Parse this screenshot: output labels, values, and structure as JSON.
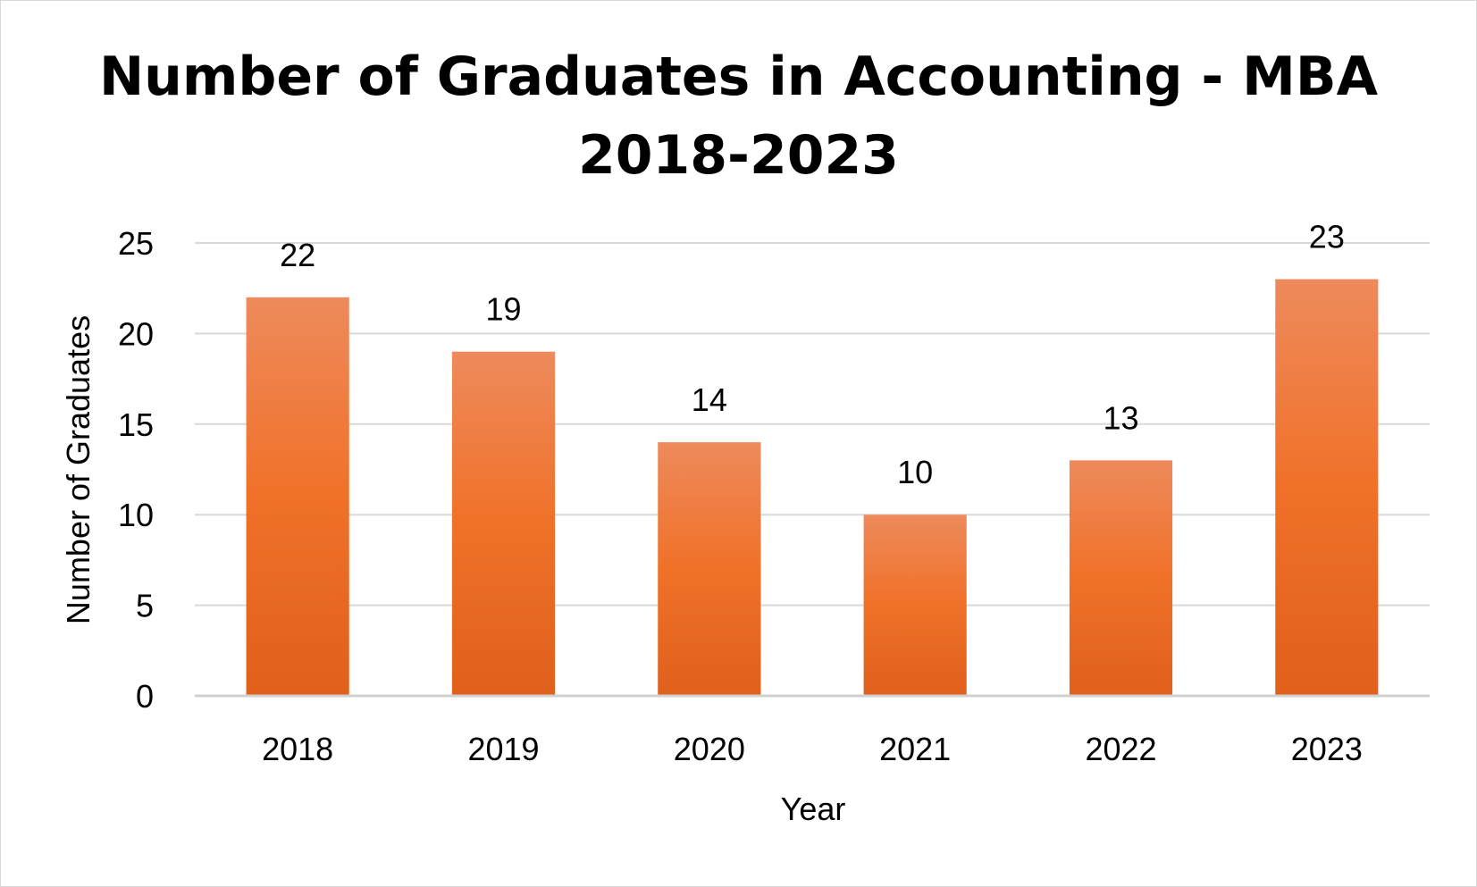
{
  "chart_data": {
    "type": "bar",
    "title_lines": [
      "Number of Graduates in Accounting - MBA",
      "2018-2023"
    ],
    "categories": [
      "2018",
      "2019",
      "2020",
      "2021",
      "2022",
      "2023"
    ],
    "values": [
      22,
      19,
      14,
      10,
      13,
      23
    ],
    "data_labels": [
      "22",
      "19",
      "14",
      "10",
      "13",
      "23"
    ],
    "xlabel": "Year",
    "ylabel": "Number of Graduates",
    "ylim": [
      0,
      25
    ],
    "yticks": [
      "0",
      "5",
      "10",
      "15",
      "20",
      "25"
    ],
    "grid": true,
    "legend": "none",
    "colors": {
      "bar_top": "#ee8a5c",
      "bar_mid": "#f07128",
      "bar_bottom": "#e0601c",
      "grid": "#d9d9d9",
      "axis": "#d0d0d0"
    }
  }
}
